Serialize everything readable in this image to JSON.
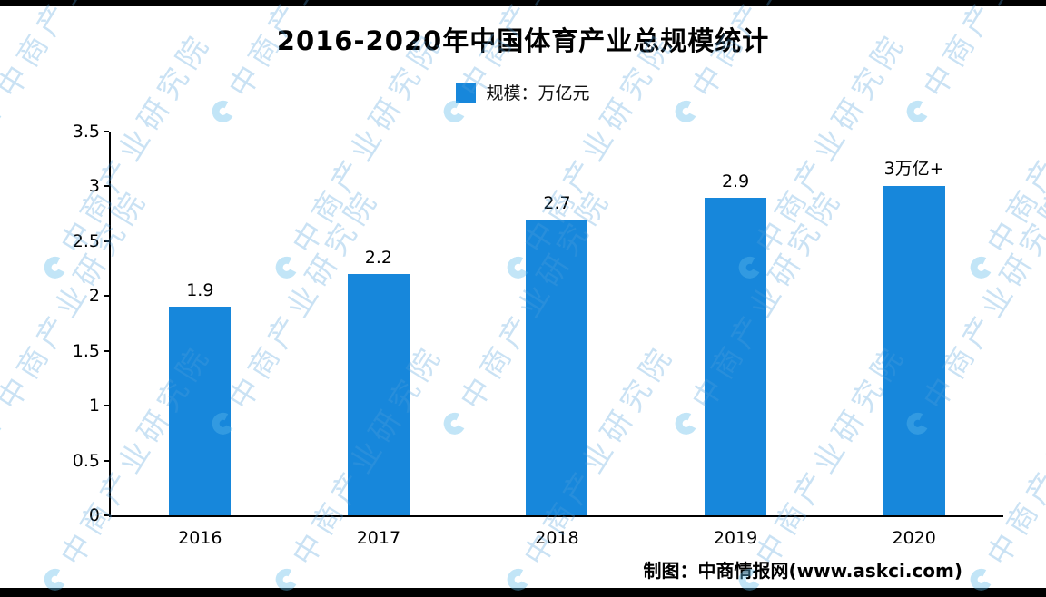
{
  "title": "2016-2020年中国体育产业总规模统计",
  "legend": {
    "label": "规模：万亿元",
    "color": "#1787db"
  },
  "chart_data": {
    "type": "bar",
    "title": "2016-2020年中国体育产业总规模统计",
    "categories": [
      "2016",
      "2017",
      "2018",
      "2019",
      "2020"
    ],
    "values": [
      1.9,
      2.2,
      2.7,
      2.9,
      3.0
    ],
    "data_labels": [
      "1.9",
      "2.2",
      "2.7",
      "2.9",
      "3万亿+"
    ],
    "series_name": "规模：万亿元",
    "xlabel": "",
    "ylabel": "",
    "ylim": [
      0,
      3.5
    ],
    "yticks": [
      0,
      0.5,
      1,
      1.5,
      2,
      2.5,
      3,
      3.5
    ],
    "ytick_labels": [
      "0",
      "0.5",
      "1",
      "1.5",
      "2",
      "2.5",
      "3",
      "3.5"
    ],
    "bar_color": "#1787db",
    "grid": false,
    "legend_position": "top-center"
  },
  "footer": {
    "credit": "制图：中商情报网(www.askci.com)"
  },
  "watermark": {
    "text": "中商产业研究院"
  }
}
